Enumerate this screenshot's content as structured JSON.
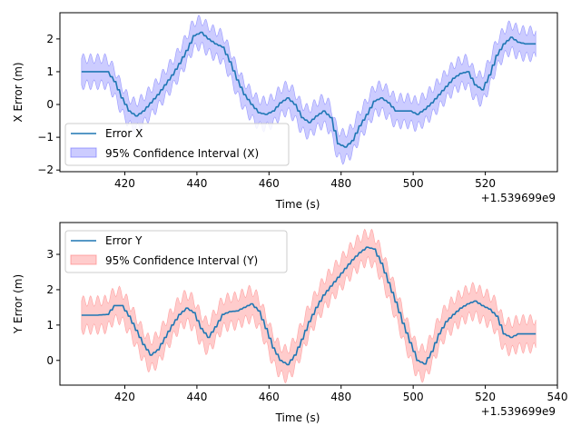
{
  "chart_data": [
    {
      "type": "line",
      "title": "",
      "xlabel": "Time (s)",
      "ylabel": "X Error (m)",
      "x_offset_label": "+1.539699e9",
      "xlim": [
        402,
        540
      ],
      "ylim": [
        -2.05,
        2.8
      ],
      "xticks": [
        420,
        440,
        460,
        480,
        500,
        520
      ],
      "yticks": [
        -2,
        -1,
        0,
        1,
        2
      ],
      "grid": false,
      "legend_position": "lower-left",
      "line_color": "#1f77b4",
      "band_fill": "#0000ff",
      "band_edge": "#6a6aff",
      "series": [
        {
          "name": "Error X",
          "x": [
            408,
            412,
            415,
            417,
            419,
            421,
            423,
            425,
            427,
            429,
            431,
            433,
            435,
            437,
            439,
            441,
            443,
            445,
            447,
            449,
            451,
            453,
            455,
            457,
            459,
            461,
            463,
            465,
            467,
            469,
            471,
            473,
            475,
            477,
            479,
            481,
            483,
            485,
            487,
            489,
            491,
            493,
            495,
            497,
            499,
            501,
            503,
            505,
            507,
            509,
            511,
            513,
            515,
            517,
            519,
            521,
            523,
            525,
            527,
            529,
            531,
            534
          ],
          "y": [
            1.0,
            1.0,
            1.0,
            0.7,
            0.2,
            -0.2,
            -0.35,
            -0.2,
            0.05,
            0.3,
            0.6,
            0.9,
            1.25,
            1.65,
            2.1,
            2.2,
            2.0,
            1.85,
            1.75,
            1.3,
            0.75,
            0.3,
            0.0,
            -0.25,
            -0.3,
            -0.2,
            0.05,
            0.2,
            0.0,
            -0.4,
            -0.55,
            -0.35,
            -0.2,
            -0.4,
            -1.2,
            -1.3,
            -1.1,
            -0.65,
            -0.3,
            0.1,
            0.2,
            0.05,
            -0.2,
            -0.2,
            -0.2,
            -0.3,
            -0.15,
            0.05,
            0.3,
            0.55,
            0.8,
            0.95,
            1.0,
            0.6,
            0.45,
            0.9,
            1.5,
            1.85,
            2.05,
            1.9,
            1.85,
            1.85
          ]
        },
        {
          "name": "95% Confidence Interval (X)",
          "half_width": 0.4,
          "ripple": 0.15
        }
      ]
    },
    {
      "type": "line",
      "title": "",
      "xlabel": "Time (s)",
      "ylabel": "Y Error (m)",
      "x_offset_label": "+1.539699e9",
      "xlim": [
        402,
        540
      ],
      "ylim": [
        -0.7,
        3.9
      ],
      "xticks": [
        420,
        440,
        460,
        480,
        500,
        520,
        540
      ],
      "yticks": [
        0,
        1,
        2,
        3
      ],
      "grid": false,
      "legend_position": "upper-left",
      "line_color": "#1f77b4",
      "band_fill": "#ff0000",
      "band_edge": "#ff7a7a",
      "series": [
        {
          "name": "Error Y",
          "x": [
            408,
            412,
            415,
            417,
            419,
            421,
            423,
            425,
            427,
            429,
            431,
            433,
            435,
            437,
            439,
            441,
            443,
            445,
            447,
            449,
            451,
            453,
            455,
            457,
            459,
            461,
            463,
            465,
            467,
            469,
            471,
            473,
            475,
            477,
            479,
            481,
            483,
            485,
            487,
            489,
            491,
            493,
            495,
            497,
            499,
            501,
            503,
            505,
            507,
            509,
            511,
            513,
            515,
            517,
            519,
            521,
            523,
            525,
            527,
            529,
            531,
            534
          ],
          "y": [
            1.28,
            1.28,
            1.3,
            1.55,
            1.55,
            1.25,
            0.85,
            0.45,
            0.15,
            0.3,
            0.65,
            1.0,
            1.3,
            1.48,
            1.35,
            0.9,
            0.65,
            0.95,
            1.3,
            1.38,
            1.4,
            1.5,
            1.6,
            1.4,
            0.9,
            0.35,
            0.0,
            -0.12,
            0.15,
            0.6,
            1.1,
            1.5,
            1.85,
            2.1,
            2.35,
            2.6,
            2.85,
            3.05,
            3.2,
            3.15,
            2.75,
            2.2,
            1.65,
            1.05,
            0.5,
            0.0,
            -0.1,
            0.25,
            0.75,
            1.1,
            1.3,
            1.48,
            1.6,
            1.68,
            1.55,
            1.45,
            1.25,
            0.75,
            0.65,
            0.75,
            0.75,
            0.75
          ]
        },
        {
          "name": "95% Confidence Interval (Y)",
          "half_width": 0.4,
          "ripple": 0.15
        }
      ]
    }
  ]
}
